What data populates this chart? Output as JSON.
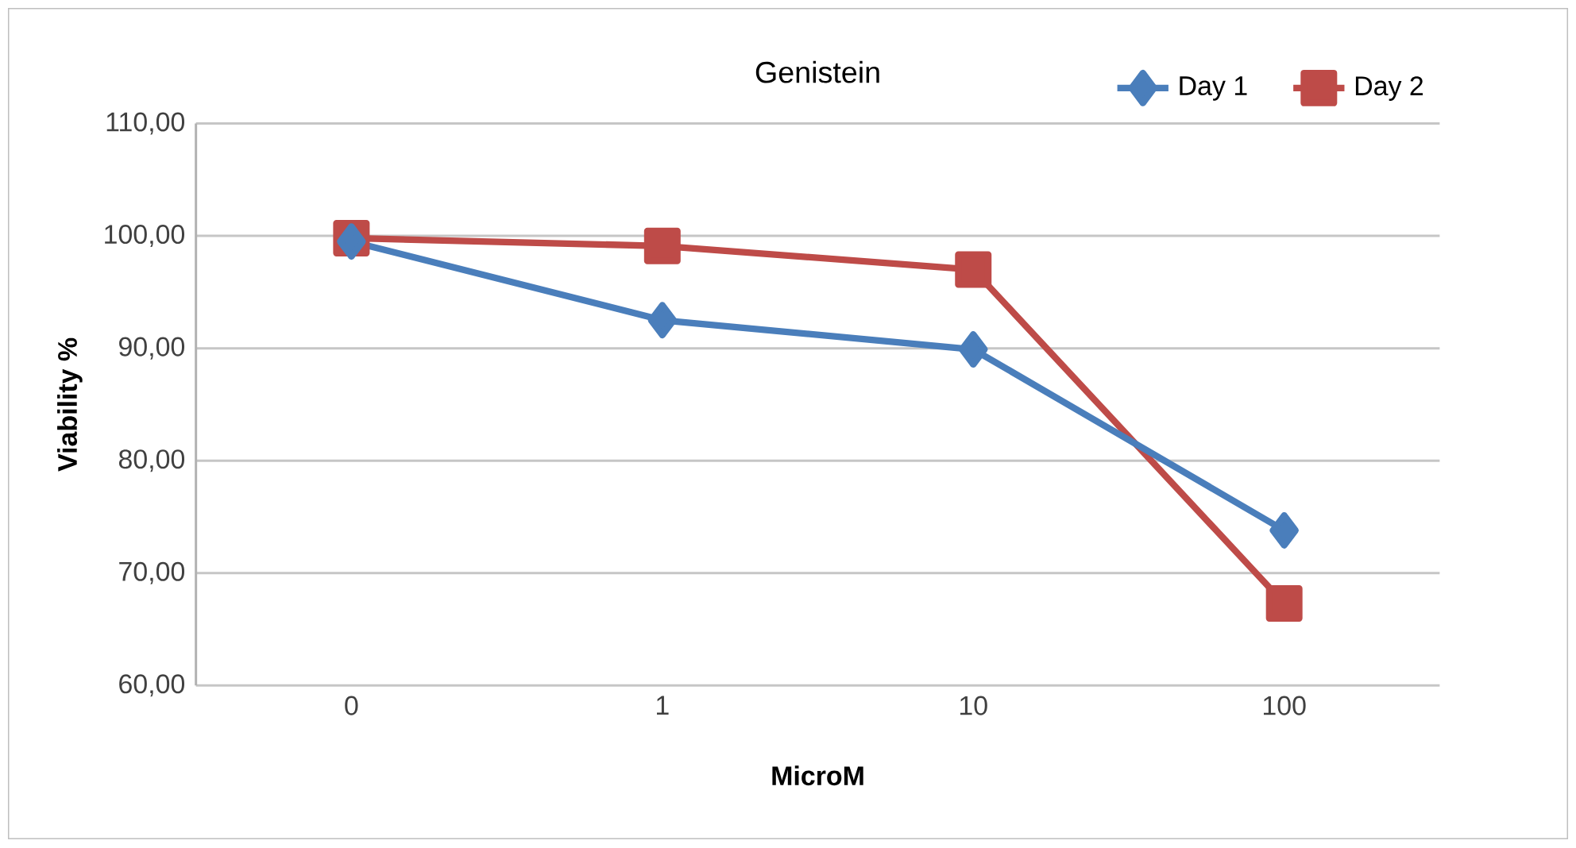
{
  "chart_data": {
    "type": "line",
    "title": "Genistein",
    "xlabel": "MicroM",
    "ylabel": "Viability %",
    "categories": [
      "0",
      "1",
      "10",
      "100"
    ],
    "series": [
      {
        "name": "Day 1",
        "color": "#4a7ebb",
        "marker": "diamond",
        "values": [
          99.5,
          92.5,
          89.9,
          73.8
        ]
      },
      {
        "name": "Day 2",
        "color": "#be4b48",
        "marker": "square",
        "values": [
          99.8,
          99.1,
          97.0,
          67.3
        ]
      }
    ],
    "ylim": [
      60,
      110
    ],
    "yticks": [
      {
        "value": 60,
        "label": "60,00"
      },
      {
        "value": 70,
        "label": "70,00"
      },
      {
        "value": 80,
        "label": "80,00"
      },
      {
        "value": 90,
        "label": "90,00"
      },
      {
        "value": 100,
        "label": "100,00"
      },
      {
        "value": 110,
        "label": "110,00"
      }
    ],
    "grid": "y",
    "legend": "top right"
  }
}
